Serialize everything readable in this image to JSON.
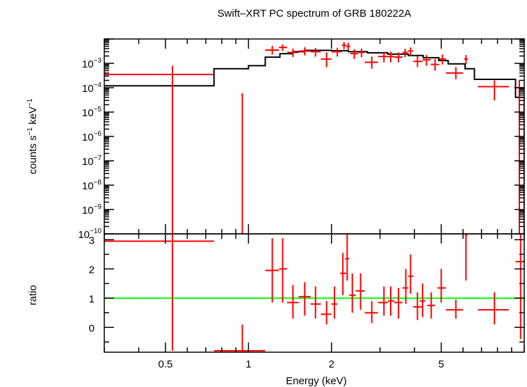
{
  "chart_data": [
    {
      "type": "line",
      "panel": "spectrum",
      "title": "Swift–XRT PC spectrum of GRB 180222A",
      "ylabel_main": "counts s",
      "ylabel_sup1": "−1",
      "ylabel_mid": " keV",
      "ylabel_sup2": "−1",
      "xscale": "log",
      "yscale": "log",
      "xlim": [
        0.3,
        10
      ],
      "ylim": [
        1e-10,
        0.01
      ],
      "y_tick_labels": [
        {
          "value": 0.001,
          "base": "10",
          "exp": "−3"
        },
        {
          "value": 0.0001,
          "base": "10",
          "exp": "−4"
        },
        {
          "value": 1e-05,
          "base": "10",
          "exp": "−5"
        },
        {
          "value": 1e-06,
          "base": "10",
          "exp": "−6"
        },
        {
          "value": 1e-07,
          "base": "10",
          "exp": "−7"
        },
        {
          "value": 1e-08,
          "base": "10",
          "exp": "−8"
        },
        {
          "value": 1e-09,
          "base": "10",
          "exp": "−9"
        },
        {
          "value": 1e-10,
          "base": "10",
          "exp": "−10"
        }
      ],
      "series": [
        {
          "kind": "errorbars",
          "color": "#ff0000",
          "points": [
            {
              "x": 0.53,
              "xlo": 0.3,
              "xhi": 0.75,
              "y": 0.00035,
              "ylo": 1e-10,
              "yhi": 0.0008
            },
            {
              "x": 0.95,
              "xlo": 0.94,
              "xhi": 0.96,
              "y": 1e-10,
              "ylo": 1e-10,
              "yhi": 6e-05
            },
            {
              "x": 1.22,
              "xlo": 1.15,
              "xhi": 1.29,
              "y": 0.0035,
              "ylo": 0.0023,
              "yhi": 0.0052
            },
            {
              "x": 1.33,
              "xlo": 1.29,
              "xhi": 1.38,
              "y": 0.0045,
              "ylo": 0.0032,
              "yhi": 0.006
            },
            {
              "x": 1.45,
              "xlo": 1.38,
              "xhi": 1.52,
              "y": 0.0028,
              "ylo": 0.0018,
              "yhi": 0.004
            },
            {
              "x": 1.6,
              "xlo": 1.52,
              "xhi": 1.68,
              "y": 0.0032,
              "ylo": 0.0021,
              "yhi": 0.0046
            },
            {
              "x": 1.75,
              "xlo": 1.68,
              "xhi": 1.83,
              "y": 0.003,
              "ylo": 0.0019,
              "yhi": 0.0043
            },
            {
              "x": 1.92,
              "xlo": 1.83,
              "xhi": 2.0,
              "y": 0.0015,
              "ylo": 0.0007,
              "yhi": 0.0028
            },
            {
              "x": 2.1,
              "xlo": 2.0,
              "xhi": 2.18,
              "y": 0.003,
              "ylo": 0.0019,
              "yhi": 0.0044
            },
            {
              "x": 2.22,
              "xlo": 2.18,
              "xhi": 2.26,
              "y": 0.0055,
              "ylo": 0.0038,
              "yhi": 0.0075
            },
            {
              "x": 2.3,
              "xlo": 2.26,
              "xhi": 2.34,
              "y": 0.005,
              "ylo": 0.0034,
              "yhi": 0.007
            },
            {
              "x": 2.42,
              "xlo": 2.34,
              "xhi": 2.5,
              "y": 0.0025,
              "ylo": 0.0015,
              "yhi": 0.0038
            },
            {
              "x": 2.57,
              "xlo": 2.5,
              "xhi": 2.64,
              "y": 0.0028,
              "ylo": 0.0018,
              "yhi": 0.004
            },
            {
              "x": 2.8,
              "xlo": 2.64,
              "xhi": 2.95,
              "y": 0.0011,
              "ylo": 0.0006,
              "yhi": 0.0019
            },
            {
              "x": 3.1,
              "xlo": 2.95,
              "xhi": 3.2,
              "y": 0.0019,
              "ylo": 0.0011,
              "yhi": 0.003
            },
            {
              "x": 3.28,
              "xlo": 3.2,
              "xhi": 3.38,
              "y": 0.0019,
              "ylo": 0.0011,
              "yhi": 0.003
            },
            {
              "x": 3.5,
              "xlo": 3.38,
              "xhi": 3.62,
              "y": 0.0018,
              "ylo": 0.0011,
              "yhi": 0.0028
            },
            {
              "x": 3.7,
              "xlo": 3.62,
              "xhi": 3.78,
              "y": 0.0028,
              "ylo": 0.0018,
              "yhi": 0.004
            },
            {
              "x": 3.87,
              "xlo": 3.78,
              "xhi": 3.96,
              "y": 0.0032,
              "ylo": 0.0021,
              "yhi": 0.0045
            },
            {
              "x": 4.1,
              "xlo": 3.96,
              "xhi": 4.28,
              "y": 0.0012,
              "ylo": 0.0007,
              "yhi": 0.002
            },
            {
              "x": 4.42,
              "xlo": 4.28,
              "xhi": 4.58,
              "y": 0.0014,
              "ylo": 0.0008,
              "yhi": 0.0022
            },
            {
              "x": 4.75,
              "xlo": 4.58,
              "xhi": 4.92,
              "y": 0.0009,
              "ylo": 0.0005,
              "yhi": 0.0015
            },
            {
              "x": 5.05,
              "xlo": 4.92,
              "xhi": 5.2,
              "y": 0.0015,
              "ylo": 0.0009,
              "yhi": 0.0023
            },
            {
              "x": 5.65,
              "xlo": 5.2,
              "xhi": 6.0,
              "y": 0.0004,
              "ylo": 0.00022,
              "yhi": 0.0007
            },
            {
              "x": 6.15,
              "xlo": 6.05,
              "xhi": 6.25,
              "y": 0.0015,
              "ylo": 0.0009,
              "yhi": 0.0022
            },
            {
              "x": 7.8,
              "xlo": 6.8,
              "xhi": 8.8,
              "y": 0.00011,
              "ylo": 3e-05,
              "yhi": 0.0002
            },
            {
              "x": 9.6,
              "xlo": 9.2,
              "xhi": 10.0,
              "y": 0.0001,
              "ylo": 1e-10,
              "yhi": 0.0002
            }
          ]
        },
        {
          "kind": "step-model",
          "color": "#000000",
          "steps": [
            {
              "x0": 0.3,
              "x1": 0.75,
              "y": 0.00012
            },
            {
              "x0": 0.75,
              "x1": 1.0,
              "y": 0.0006
            },
            {
              "x0": 1.0,
              "x1": 1.15,
              "y": 0.0008
            },
            {
              "x0": 1.15,
              "x1": 1.3,
              "y": 0.0018
            },
            {
              "x0": 1.3,
              "x1": 1.45,
              "y": 0.0025
            },
            {
              "x0": 1.45,
              "x1": 1.6,
              "y": 0.003
            },
            {
              "x0": 1.6,
              "x1": 2.0,
              "y": 0.0034
            },
            {
              "x0": 2.0,
              "x1": 2.3,
              "y": 0.0033
            },
            {
              "x0": 2.3,
              "x1": 2.7,
              "y": 0.003
            },
            {
              "x0": 2.7,
              "x1": 3.2,
              "y": 0.0027
            },
            {
              "x0": 3.2,
              "x1": 3.8,
              "y": 0.0024
            },
            {
              "x0": 3.8,
              "x1": 4.3,
              "y": 0.0021
            },
            {
              "x0": 4.3,
              "x1": 4.9,
              "y": 0.0017
            },
            {
              "x0": 4.9,
              "x1": 5.3,
              "y": 0.0013
            },
            {
              "x0": 5.3,
              "x1": 6.1,
              "y": 0.00095
            },
            {
              "x0": 6.1,
              "x1": 6.6,
              "y": 0.0006
            },
            {
              "x0": 6.6,
              "x1": 9.3,
              "y": 0.00022
            },
            {
              "x0": 9.3,
              "x1": 10.0,
              "y": 4e-05
            }
          ]
        }
      ]
    },
    {
      "type": "line",
      "panel": "ratio",
      "xlabel": "Energy (keV)",
      "ylabel": "ratio",
      "xscale": "log",
      "xlim": [
        0.3,
        10
      ],
      "ylim": [
        -0.85,
        3.2
      ],
      "x_ticks": [
        {
          "value": 0.5,
          "label": "0.5"
        },
        {
          "value": 1,
          "label": "1"
        },
        {
          "value": 2,
          "label": "2"
        },
        {
          "value": 5,
          "label": "5"
        }
      ],
      "y_ticks": [
        {
          "value": 0,
          "label": "0"
        },
        {
          "value": 1,
          "label": "1"
        },
        {
          "value": 2,
          "label": "2"
        },
        {
          "value": 3,
          "label": "3"
        }
      ],
      "reference_line": {
        "y": 1,
        "color": "#00ff00"
      },
      "series": [
        {
          "kind": "errorbars",
          "color": "#ff0000",
          "points": [
            {
              "x": 0.53,
              "xlo": 0.3,
              "xhi": 0.75,
              "y": 2.95,
              "ylo": -0.8,
              "yhi": 3.2
            },
            {
              "x": 0.95,
              "xlo": 0.75,
              "xhi": 1.15,
              "y": -0.8,
              "ylo": -0.85,
              "yhi": 0.1
            },
            {
              "x": 1.22,
              "xlo": 1.15,
              "xhi": 1.29,
              "y": 1.95,
              "ylo": 0.85,
              "yhi": 3.05
            },
            {
              "x": 1.33,
              "xlo": 1.29,
              "xhi": 1.38,
              "y": 2.0,
              "ylo": 0.85,
              "yhi": 3.05
            },
            {
              "x": 1.45,
              "xlo": 1.38,
              "xhi": 1.52,
              "y": 0.85,
              "ylo": 0.3,
              "yhi": 1.45
            },
            {
              "x": 1.6,
              "xlo": 1.52,
              "xhi": 1.68,
              "y": 1.05,
              "ylo": 0.4,
              "yhi": 1.55
            },
            {
              "x": 1.75,
              "xlo": 1.68,
              "xhi": 1.83,
              "y": 0.8,
              "ylo": 0.3,
              "yhi": 1.4
            },
            {
              "x": 1.92,
              "xlo": 1.83,
              "xhi": 2.0,
              "y": 0.45,
              "ylo": 0.1,
              "yhi": 0.9
            },
            {
              "x": 2.05,
              "xlo": 2.0,
              "xhi": 2.1,
              "y": 0.8,
              "ylo": 0.3,
              "yhi": 1.4
            },
            {
              "x": 2.2,
              "xlo": 2.15,
              "xhi": 2.26,
              "y": 1.85,
              "ylo": 1.1,
              "yhi": 2.55
            },
            {
              "x": 2.28,
              "xlo": 2.24,
              "xhi": 2.32,
              "y": 2.35,
              "ylo": 1.6,
              "yhi": 3.2
            },
            {
              "x": 2.38,
              "xlo": 2.32,
              "xhi": 2.45,
              "y": 1.1,
              "ylo": 0.5,
              "yhi": 1.85
            },
            {
              "x": 2.55,
              "xlo": 2.45,
              "xhi": 2.64,
              "y": 1.25,
              "ylo": 0.6,
              "yhi": 1.85
            },
            {
              "x": 2.8,
              "xlo": 2.64,
              "xhi": 2.95,
              "y": 0.5,
              "ylo": 0.15,
              "yhi": 0.9
            },
            {
              "x": 3.1,
              "xlo": 2.95,
              "xhi": 3.2,
              "y": 0.85,
              "ylo": 0.4,
              "yhi": 1.4
            },
            {
              "x": 3.28,
              "xlo": 3.2,
              "xhi": 3.38,
              "y": 0.9,
              "ylo": 0.4,
              "yhi": 1.4
            },
            {
              "x": 3.5,
              "xlo": 3.38,
              "xhi": 3.62,
              "y": 0.85,
              "ylo": 0.3,
              "yhi": 1.35
            },
            {
              "x": 3.72,
              "xlo": 3.62,
              "xhi": 3.8,
              "y": 1.35,
              "ylo": 0.8,
              "yhi": 2.0
            },
            {
              "x": 3.87,
              "xlo": 3.8,
              "xhi": 3.96,
              "y": 1.75,
              "ylo": 1.15,
              "yhi": 2.5
            },
            {
              "x": 4.1,
              "xlo": 3.96,
              "xhi": 4.28,
              "y": 0.7,
              "ylo": 0.25,
              "yhi": 1.2
            },
            {
              "x": 4.28,
              "xlo": 4.18,
              "xhi": 4.38,
              "y": 0.9,
              "ylo": 0.35,
              "yhi": 1.5
            },
            {
              "x": 4.6,
              "xlo": 4.45,
              "xhi": 4.75,
              "y": 0.75,
              "ylo": 0.3,
              "yhi": 1.2
            },
            {
              "x": 5.0,
              "xlo": 4.85,
              "xhi": 5.2,
              "y": 1.35,
              "ylo": 0.85,
              "yhi": 2.0
            },
            {
              "x": 5.65,
              "xlo": 5.2,
              "xhi": 6.0,
              "y": 0.6,
              "ylo": 0.3,
              "yhi": 0.95
            },
            {
              "x": 6.15,
              "xlo": 6.1,
              "xhi": 6.2,
              "y": 3.15,
              "ylo": 1.6,
              "yhi": 3.2
            },
            {
              "x": 7.8,
              "xlo": 6.8,
              "xhi": 8.8,
              "y": 0.6,
              "ylo": 0.1,
              "yhi": 1.2
            },
            {
              "x": 9.7,
              "xlo": 9.3,
              "xhi": 10.0,
              "y": 2.25,
              "ylo": -0.4,
              "yhi": 3.2
            }
          ]
        }
      ]
    }
  ]
}
